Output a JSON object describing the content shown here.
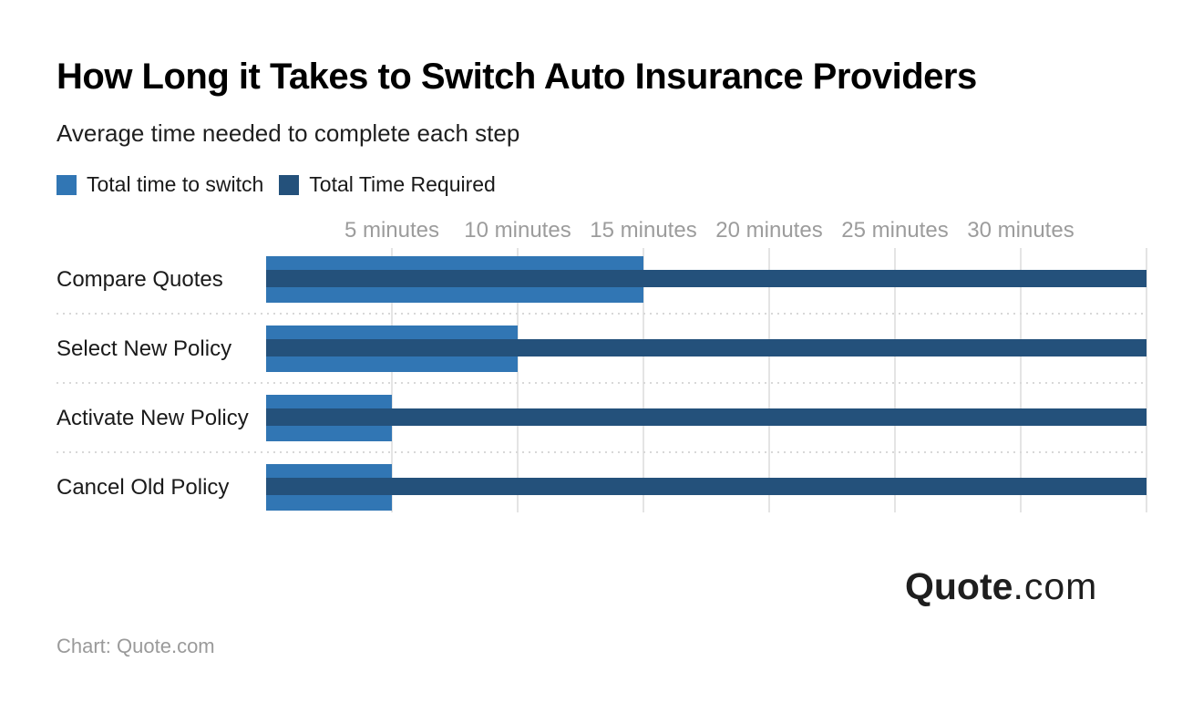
{
  "title": "How Long it Takes to Switch Auto Insurance Providers",
  "subtitle": "Average time needed to complete each step",
  "legend": {
    "items": [
      {
        "label": "Total time to switch",
        "color": "#3176b4"
      },
      {
        "label": "Total Time Required",
        "color": "#24517b"
      }
    ]
  },
  "chart_data": {
    "type": "bar",
    "orientation": "horizontal",
    "title": "How Long it Takes to Switch Auto Insurance Providers",
    "subtitle": "Average time needed to complete each step",
    "categories": [
      "Compare Quotes",
      "Select New Policy",
      "Activate New Policy",
      "Cancel Old Policy"
    ],
    "series": [
      {
        "name": "Total time to switch",
        "color": "#3176b4",
        "values": [
          15,
          10,
          5,
          5
        ]
      },
      {
        "name": "Total Time Required",
        "color": "#24517b",
        "values": [
          35,
          35,
          35,
          35
        ]
      }
    ],
    "x_ticks": [
      {
        "value": 5,
        "label": "5 minutes"
      },
      {
        "value": 10,
        "label": "10 minutes"
      },
      {
        "value": 15,
        "label": "15 minutes"
      },
      {
        "value": 20,
        "label": "20 minutes"
      },
      {
        "value": 25,
        "label": "25 minutes"
      },
      {
        "value": 30,
        "label": "30 minutes"
      },
      {
        "value": 35,
        "label": ""
      }
    ],
    "xlim": [
      0,
      35
    ],
    "unit": "minutes",
    "grid": true,
    "legend_position": "top"
  },
  "logo": {
    "bold": "Quote",
    "rest": ".com"
  },
  "source": "Chart: Quote.com"
}
